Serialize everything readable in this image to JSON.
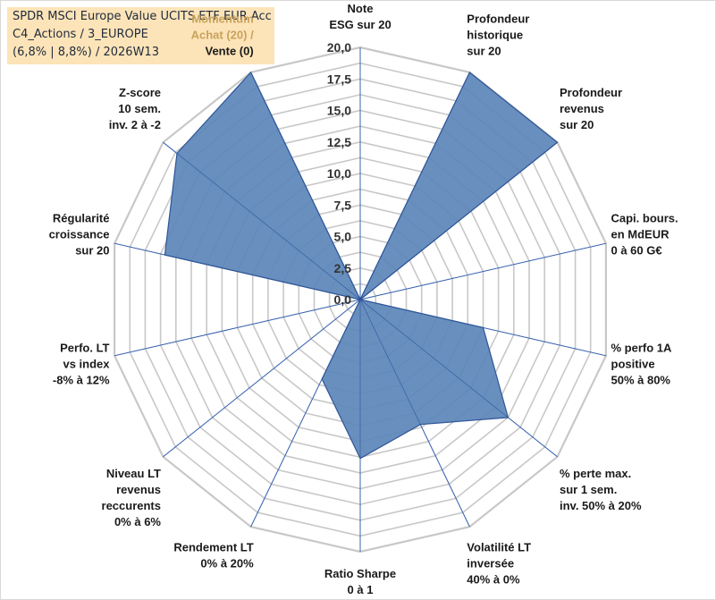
{
  "title": {
    "line1": "SPDR MSCI Europe Value UCITS ETF EUR Acc",
    "line2": "C4_Actions / 3_EUROPE",
    "line3": "(6,8% | 8,8%) / 2026W13"
  },
  "colors": {
    "fill": "#5b86b8",
    "stroke": "#2f5597",
    "grid": "#c8c8c8",
    "spoke": "#4472c4",
    "title_bg": "#fce4b8",
    "first_axis_label": "#c9a25a"
  },
  "chart_data": {
    "type": "radar",
    "title": "SPDR MSCI Europe Value UCITS ETF EUR Acc",
    "rmax": 20,
    "tick_step": 2.5,
    "tick_labels": [
      "0,0",
      "2,5",
      "5,0",
      "7,5",
      "10,0",
      "12,5",
      "15,0",
      "17,5",
      "20,0"
    ],
    "axes": [
      "Note\nESG sur 20",
      "Profondeur\nhistorique\nsur 20",
      "Profondeur\nrevenus\nsur 20",
      "Capi. bours.\nen MdEUR\n0 à 60 G€",
      "% perfo 1A\npositive\n50% à 80%",
      "% perte max.\nsur 1 sem.\ninv. 50% à 20%",
      "Volatilité LT\ninversée\n40% à 0%",
      "Ratio Sharpe\n0 à 1",
      "Rendement LT\n0% à 20%",
      "Niveau LT\nrevenus\nreccurents\n0% à 6%",
      "Perfo. LT\nvs index\n-8% à 12%",
      "Régularité\ncroissance\nsur 20",
      "Z-score\n10 sem.\ninv. 2 à -2",
      "Momentum\nAchat (20) /\nVente (0)"
    ],
    "values": [
      0,
      20,
      20,
      0,
      10,
      15,
      11,
      12.6,
      7,
      0,
      0,
      15.9,
      18.6,
      20
    ]
  }
}
